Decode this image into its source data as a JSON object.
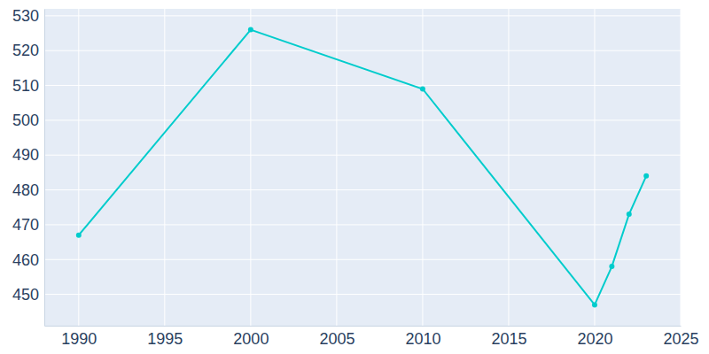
{
  "chart_data": {
    "type": "line",
    "x": [
      1990,
      2000,
      2010,
      2020,
      2021,
      2022,
      2023
    ],
    "values": [
      467,
      526,
      509,
      447,
      458,
      473,
      484
    ],
    "color": "#00cccc",
    "marker": "circle",
    "xlim": [
      1988,
      2025
    ],
    "xticks": [
      1990,
      1995,
      2000,
      2005,
      2010,
      2015,
      2020,
      2025
    ],
    "ylim": [
      441,
      532
    ],
    "yticks": [
      450,
      460,
      470,
      480,
      490,
      500,
      510,
      520,
      530
    ],
    "grid": true
  }
}
